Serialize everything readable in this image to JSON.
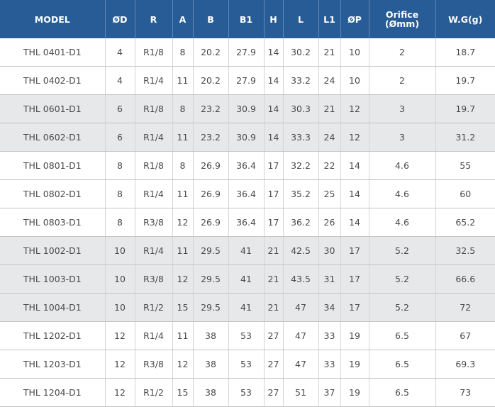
{
  "table": {
    "headers": [
      "MODEL",
      "ØD",
      "R",
      "A",
      "B",
      "B1",
      "H",
      "L",
      "L1",
      "ØP",
      "Orifice\n(Ømm)",
      "W.G(g)"
    ],
    "rows": [
      [
        "THL 0401-D1",
        "4",
        "R1/8",
        "8",
        "20.2",
        "27.9",
        "14",
        "30.2",
        "21",
        "10",
        "2",
        "18.7"
      ],
      [
        "THL 0402-D1",
        "4",
        "R1/4",
        "11",
        "20.2",
        "27.9",
        "14",
        "33.2",
        "24",
        "10",
        "2",
        "19.7"
      ],
      [
        "THL 0601-D1",
        "6",
        "R1/8",
        "8",
        "23.2",
        "30.9",
        "14",
        "30.3",
        "21",
        "12",
        "3",
        "19.7"
      ],
      [
        "THL 0602-D1",
        "6",
        "R1/4",
        "11",
        "23.2",
        "30.9",
        "14",
        "33.3",
        "24",
        "12",
        "3",
        "31.2"
      ],
      [
        "THL 0801-D1",
        "8",
        "R1/8",
        "8",
        "26.9",
        "36.4",
        "17",
        "32.2",
        "22",
        "14",
        "4.6",
        "55"
      ],
      [
        "THL 0802-D1",
        "8",
        "R1/4",
        "11",
        "26.9",
        "36.4",
        "17",
        "35.2",
        "25",
        "14",
        "4.6",
        "60"
      ],
      [
        "THL 0803-D1",
        "8",
        "R3/8",
        "12",
        "26.9",
        "36.4",
        "17",
        "36.2",
        "26",
        "14",
        "4.6",
        "65.2"
      ],
      [
        "THL 1002-D1",
        "10",
        "R1/4",
        "11",
        "29.5",
        "41",
        "21",
        "42.5",
        "30",
        "17",
        "5.2",
        "32.5"
      ],
      [
        "THL 1003-D1",
        "10",
        "R3/8",
        "12",
        "29.5",
        "41",
        "21",
        "43.5",
        "31",
        "17",
        "5.2",
        "66.6"
      ],
      [
        "THL 1004-D1",
        "10",
        "R1/2",
        "15",
        "29.5",
        "41",
        "21",
        "47",
        "34",
        "17",
        "5.2",
        "72"
      ],
      [
        "THL 1202-D1",
        "12",
        "R1/4",
        "11",
        "38",
        "53",
        "27",
        "47",
        "33",
        "19",
        "6.5",
        "67"
      ],
      [
        "THL 1203-D1",
        "12",
        "R3/8",
        "12",
        "38",
        "53",
        "27",
        "47",
        "33",
        "19",
        "6.5",
        "69.3"
      ],
      [
        "THL 1204-D1",
        "12",
        "R1/2",
        "15",
        "38",
        "53",
        "27",
        "51",
        "37",
        "19",
        "6.5",
        "73"
      ]
    ],
    "shaded_rows": [
      2,
      3,
      7,
      8,
      9
    ],
    "header_bg": "#275c96",
    "shade_bg": "#e7e8ea"
  }
}
